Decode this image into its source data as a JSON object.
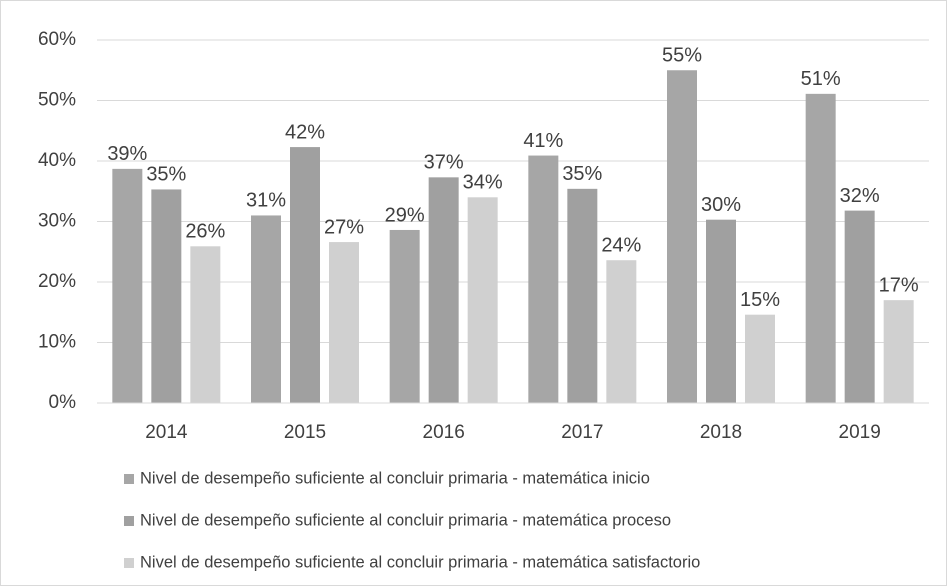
{
  "chart_data": {
    "type": "bar",
    "categories": [
      "2014",
      "2015",
      "2016",
      "2017",
      "2018",
      "2019"
    ],
    "series": [
      {
        "name": "Nivel de desempeño suficiente al concluir primaria - matemática inicio",
        "color": "#a6a6a6",
        "values": [
          38.7,
          31,
          28.6,
          40.9,
          55,
          51.1
        ],
        "value_labels": [
          "39%",
          "31%",
          "29%",
          "41%",
          "55%",
          "51%"
        ]
      },
      {
        "name": "Nivel de desempeño suficiente al concluir primaria - matemática proceso",
        "color": "#a0a0a0",
        "values": [
          35.3,
          42.3,
          37.3,
          35.4,
          30.3,
          31.8
        ],
        "value_labels": [
          "35%",
          "42%",
          "37%",
          "35%",
          "30%",
          "32%"
        ]
      },
      {
        "name": "Nivel de desempeño suficiente al concluir primaria - matemática satisfactorio",
        "color": "#d0d0d0",
        "values": [
          25.9,
          26.6,
          34,
          23.6,
          14.6,
          17
        ],
        "value_labels": [
          "26%",
          "27%",
          "34%",
          "24%",
          "15%",
          "17%"
        ]
      }
    ],
    "ylim": [
      0,
      60
    ],
    "yticks": [
      {
        "value": 0,
        "label": "0%"
      },
      {
        "value": 10,
        "label": "10%"
      },
      {
        "value": 20,
        "label": "20%"
      },
      {
        "value": 30,
        "label": "30%"
      },
      {
        "value": 40,
        "label": "40%"
      },
      {
        "value": 50,
        "label": "50%"
      },
      {
        "value": 60,
        "label": "60%"
      }
    ],
    "grid": true,
    "legend": "bottom"
  }
}
